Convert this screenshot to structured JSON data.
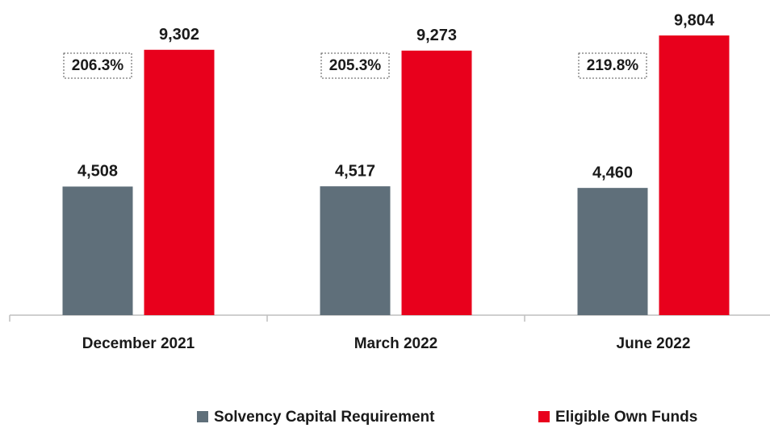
{
  "chart_data": {
    "type": "bar",
    "categories": [
      "December 2021",
      "March 2022",
      "June 2022"
    ],
    "series": [
      {
        "name": "Solvency Capital Requirement",
        "color": "#5f6f7a",
        "values": [
          4508,
          4517,
          4460
        ],
        "value_labels": [
          "4,508",
          "4,517",
          "4,460"
        ]
      },
      {
        "name": "Eligible Own Funds",
        "color": "#e8001c",
        "values": [
          9302,
          9273,
          9804
        ],
        "value_labels": [
          "9,302",
          "9,273",
          "9,804"
        ]
      }
    ],
    "annotations": [
      "206.3%",
      "205.3%",
      "219.8%"
    ],
    "legend": "bottom"
  }
}
